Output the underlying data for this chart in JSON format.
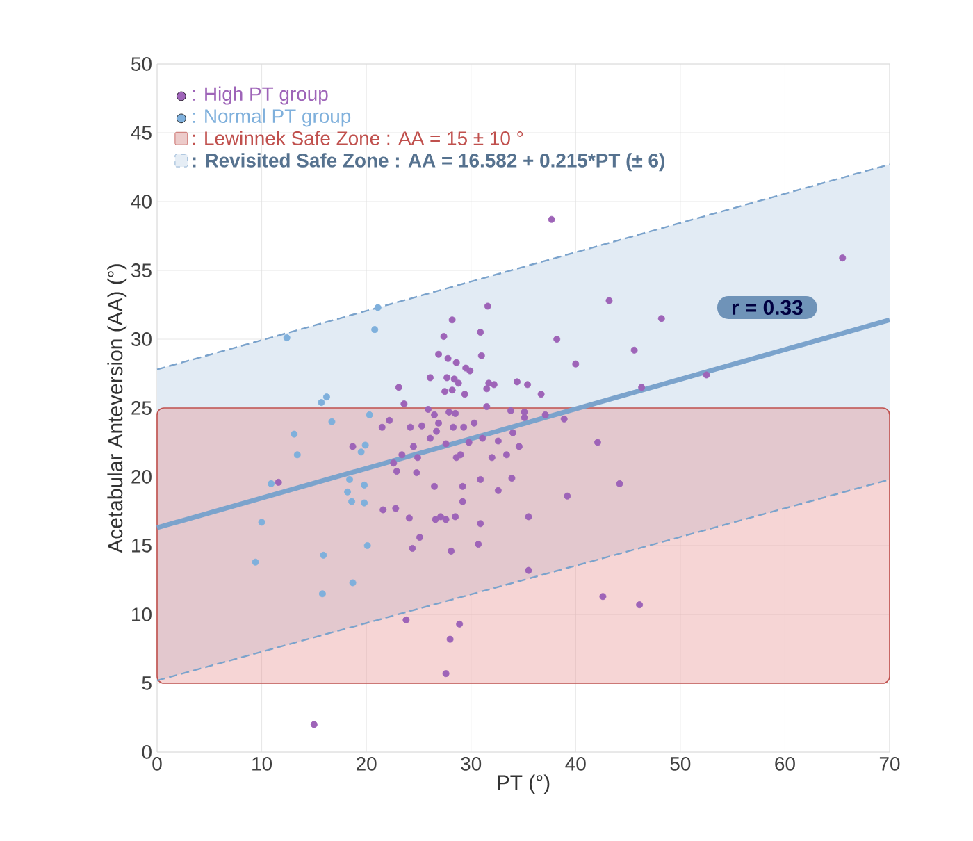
{
  "chart_data": {
    "type": "scatter",
    "xlabel": "PT (°)",
    "ylabel": "Acetabular Anteversion (AA) (°)",
    "xlim": [
      0,
      70
    ],
    "ylim": [
      0,
      50
    ],
    "xticks": [
      0,
      10,
      20,
      30,
      40,
      50,
      60,
      70
    ],
    "yticks": [
      0,
      5,
      10,
      15,
      20,
      25,
      30,
      35,
      40,
      45,
      50
    ],
    "grid": true,
    "legend": "top left",
    "marker": "circle",
    "annotations": [
      "r = 0.33"
    ],
    "bands": [
      {
        "axis": "y",
        "from": 5,
        "to": 25,
        "label": ": Lewinnek Safe Zone : AA = 15 ± 10 °",
        "color": "#c0504d"
      }
    ],
    "series": [
      {
        "name": ": High PT group",
        "color": "#9e64b8",
        "x": [
          11.6,
          23.1,
          22.2,
          21.5,
          18.7,
          22.9,
          21.6,
          22.8,
          15.0,
          37.7,
          43.2,
          31.6,
          28.2,
          30.9,
          27.4,
          38.2,
          31.0,
          26.9,
          27.8,
          28.6,
          40.0,
          29.5,
          29.9,
          26.1,
          27.7,
          28.4,
          28.8,
          31.7,
          34.4,
          35.4,
          32.2,
          27.5,
          28.2,
          29.4,
          31.5,
          36.7,
          23.6,
          31.5,
          25.9,
          33.8,
          35.1,
          26.5,
          27.9,
          28.5,
          35.1,
          37.1,
          38.9,
          24.2,
          25.3,
          26.9,
          26.7,
          28.3,
          29.3,
          30.3,
          31.1,
          26.1,
          27.6,
          29.8,
          32.6,
          34.0,
          34.6,
          24.5,
          23.4,
          24.9,
          22.6,
          28.6,
          29.0,
          32.0,
          33.4,
          42.1,
          24.8,
          33.9,
          30.9,
          26.5,
          29.2,
          44.2,
          32.6,
          39.2,
          29.2,
          24.1,
          26.6,
          27.1,
          27.6,
          28.5,
          35.5,
          30.9,
          25.1,
          24.4,
          28.1,
          30.7,
          35.5,
          42.6,
          23.8,
          28.9,
          28.0,
          27.6,
          48.2,
          45.6,
          52.5,
          46.3,
          65.5,
          46.1
        ],
        "values": [
          19.6,
          26.5,
          24.1,
          23.6,
          22.2,
          20.4,
          17.6,
          17.7,
          2.0,
          38.7,
          32.8,
          32.4,
          31.4,
          30.5,
          30.2,
          30.0,
          28.8,
          28.9,
          28.6,
          28.3,
          28.2,
          27.9,
          27.7,
          27.2,
          27.2,
          27.1,
          26.8,
          26.8,
          26.9,
          26.7,
          26.7,
          26.2,
          26.3,
          26.0,
          26.4,
          26.0,
          25.3,
          25.1,
          24.9,
          24.8,
          24.7,
          24.5,
          24.7,
          24.6,
          24.3,
          24.5,
          24.2,
          23.6,
          23.7,
          23.9,
          23.3,
          23.6,
          23.6,
          23.9,
          22.8,
          22.8,
          22.4,
          22.5,
          22.6,
          23.2,
          22.2,
          22.2,
          21.6,
          21.4,
          21.0,
          21.4,
          21.6,
          21.4,
          21.6,
          22.5,
          20.3,
          19.9,
          19.8,
          19.3,
          19.3,
          19.5,
          19.0,
          18.6,
          18.2,
          17.0,
          16.9,
          17.1,
          16.9,
          17.1,
          17.1,
          16.6,
          15.6,
          14.8,
          14.6,
          15.1,
          13.2,
          11.3,
          9.6,
          9.3,
          8.2,
          5.7,
          31.5,
          29.2,
          27.4,
          26.5,
          35.9,
          10.7
        ]
      },
      {
        "name": ": Normal PT group",
        "color": "#7fb0dc",
        "x": [
          12.4,
          21.1,
          20.8,
          16.2,
          15.7,
          16.7,
          20.3,
          13.1,
          13.4,
          19.9,
          19.5,
          18.4,
          18.2,
          19.8,
          18.6,
          19.8,
          10.9,
          10.0,
          9.4,
          15.9,
          20.1,
          15.8,
          18.7
        ],
        "values": [
          30.1,
          32.3,
          30.7,
          25.8,
          25.4,
          24.0,
          24.5,
          23.1,
          21.6,
          22.3,
          21.8,
          19.8,
          18.9,
          19.4,
          18.2,
          18.1,
          19.5,
          16.7,
          13.8,
          14.3,
          15.0,
          11.5,
          12.3
        ]
      },
      {
        "name": ": Revisited Safe Zone : AA =  16.582 + 0.215*PT (± 6)",
        "type": "line",
        "marker": "none",
        "color": "#7ba3cc",
        "x": [
          0,
          70
        ],
        "values": [
          16.3,
          31.4
        ],
        "lower": [
          5.2,
          19.8
        ],
        "upper": [
          27.8,
          42.7
        ]
      },
      {
        "type": "line",
        "marker": "none",
        "line_style": "dashed",
        "color": "#7ba3cc",
        "x": [
          0,
          70
        ],
        "values": [
          27.8,
          42.7
        ]
      },
      {
        "type": "line",
        "marker": "none",
        "line_style": "dashed",
        "color": "#7ba3cc",
        "x": [
          0,
          70
        ],
        "values": [
          5.2,
          19.8
        ]
      }
    ]
  }
}
